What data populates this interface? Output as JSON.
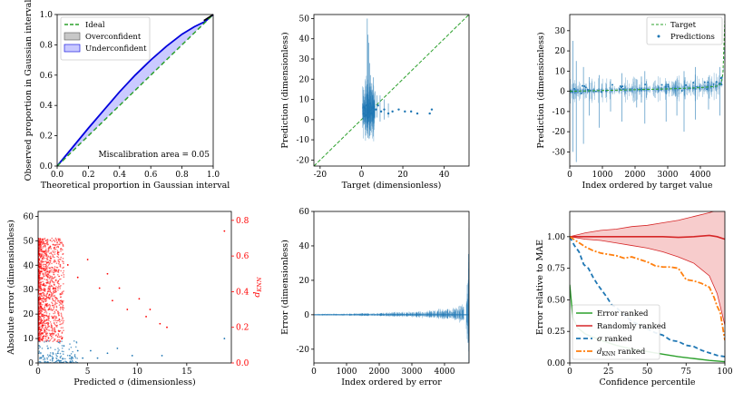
{
  "figure": {
    "panels_layout": "2x3 grid",
    "colors": {
      "blue": "#1f77b4",
      "dark_blue": "#0000dd",
      "orange": "#ff7f0e",
      "green": "#2ca02c",
      "red": "#d62728",
      "pure_red": "#ff0000",
      "gray": "#555555"
    }
  },
  "chart_data": [
    {
      "id": "calibration",
      "type": "line",
      "title": "",
      "xlabel": "Theoretical proportion in Gaussian interval",
      "ylabel": "Observed proportion in Gaussian interval",
      "xlim": [
        0,
        1
      ],
      "ylim": [
        0,
        1
      ],
      "xticks": [
        "0.0",
        "0.2",
        "0.4",
        "0.6",
        "0.8",
        "1.0"
      ],
      "yticks": [
        "0.0",
        "0.2",
        "0.4",
        "0.6",
        "0.8",
        "1.0"
      ],
      "legend": [
        "Ideal",
        "Overconfident",
        "Underconfident"
      ],
      "legend_position": "top-left",
      "annotation": "Miscalibration area = 0.05",
      "series": [
        {
          "name": "Ideal",
          "style": "dashed",
          "x": [
            0,
            1
          ],
          "y": [
            0,
            1
          ]
        },
        {
          "name": "Observed",
          "x": [
            0,
            0.1,
            0.2,
            0.3,
            0.4,
            0.5,
            0.6,
            0.7,
            0.8,
            0.88,
            0.95,
            1.0
          ],
          "y": [
            0,
            0.125,
            0.25,
            0.37,
            0.49,
            0.6,
            0.7,
            0.79,
            0.87,
            0.92,
            0.955,
            1.0
          ]
        }
      ]
    },
    {
      "id": "parity",
      "type": "scatter",
      "xlabel": "Target (dimensionless)",
      "ylabel": "Prediction (dimensionless)",
      "xlim": [
        -23,
        52
      ],
      "ylim": [
        -23,
        52
      ],
      "xticks": [
        -20,
        0,
        20,
        40
      ],
      "yticks": [
        -20,
        -10,
        0,
        10,
        20,
        30,
        40,
        50
      ],
      "ideal_line": [
        [
          -23,
          -23
        ],
        [
          52,
          52
        ]
      ],
      "points": [
        [
          1.0,
          3
        ],
        [
          1.5,
          6
        ],
        [
          2.0,
          2
        ],
        [
          2.5,
          7
        ],
        [
          3.0,
          4
        ],
        [
          3.2,
          1
        ],
        [
          3.8,
          5
        ],
        [
          4.2,
          8
        ],
        [
          4.8,
          3
        ],
        [
          5.2,
          6
        ],
        [
          6.0,
          4
        ],
        [
          7.0,
          5
        ],
        [
          8.0,
          7
        ],
        [
          9.5,
          4
        ],
        [
          11.0,
          5
        ],
        [
          13.0,
          3
        ],
        [
          15.0,
          4
        ],
        [
          18.0,
          5
        ],
        [
          21.0,
          4
        ],
        [
          24.0,
          4
        ],
        [
          27.0,
          3
        ],
        [
          33.0,
          3
        ],
        [
          34.0,
          5
        ]
      ],
      "error_bars": [
        [
          2.8,
          -2,
          50
        ],
        [
          3.1,
          -4,
          42
        ],
        [
          3.5,
          -1,
          38
        ],
        [
          4.0,
          -8,
          28
        ],
        [
          4.3,
          -2,
          22
        ],
        [
          5.0,
          0,
          18
        ],
        [
          6.5,
          1,
          14
        ],
        [
          7.5,
          1,
          12
        ],
        [
          9.0,
          -1,
          12
        ],
        [
          11.0,
          0,
          10
        ],
        [
          13.0,
          1,
          8
        ]
      ]
    },
    {
      "id": "ordered_target",
      "type": "line",
      "xlabel": "Index ordered by target value",
      "ylabel": "Prediction (dimensionless)",
      "xlim": [
        0,
        4750
      ],
      "ylim": [
        -37,
        38
      ],
      "xticks": [
        0,
        1000,
        2000,
        3000,
        4000
      ],
      "yticks": [
        -30,
        -20,
        -10,
        0,
        10,
        20,
        30
      ],
      "legend": [
        "Target",
        "Predictions"
      ],
      "legend_position": "top-right",
      "target_curve": {
        "x": [
          0,
          1000,
          2000,
          3000,
          4000,
          4500,
          4650,
          4720,
          4750
        ],
        "y": [
          0,
          0.4,
          0.8,
          1.2,
          1.8,
          2.5,
          4,
          12,
          35
        ]
      },
      "spikes": [
        [
          100,
          -30,
          25
        ],
        [
          200,
          -35,
          15
        ],
        [
          420,
          -26,
          12
        ],
        [
          600,
          -12,
          7
        ],
        [
          900,
          -18,
          8
        ],
        [
          1250,
          -10,
          6
        ],
        [
          1600,
          -15,
          9
        ],
        [
          2050,
          -8,
          6
        ],
        [
          2300,
          -16,
          10
        ],
        [
          2950,
          -15,
          5
        ],
        [
          3280,
          -12,
          6
        ],
        [
          3500,
          -20,
          10
        ],
        [
          3850,
          -14,
          12
        ],
        [
          4250,
          -9,
          7
        ],
        [
          4600,
          -12,
          12
        ]
      ]
    },
    {
      "id": "error_vs_sigma",
      "type": "scatter",
      "xlabel": "Predicted σ (dimensionless)",
      "ylabel": "Absolute error (dimensionless)",
      "ylabel_right": "dKNN",
      "xlim": [
        0,
        19.5
      ],
      "ylim": [
        0,
        62
      ],
      "ylim_right": [
        0,
        0.85
      ],
      "xticks": [
        0,
        5,
        10,
        15
      ],
      "yticks": [
        0,
        10,
        20,
        30,
        40,
        50,
        60
      ],
      "yticks_right": [
        "0.0",
        "0.2",
        "0.4",
        "0.6",
        "0.8"
      ],
      "dknn_points": [
        [
          2.0,
          0.62
        ],
        [
          3.0,
          0.55
        ],
        [
          4.0,
          0.48
        ],
        [
          5.0,
          0.58
        ],
        [
          6.2,
          0.42
        ],
        [
          7.0,
          0.5
        ],
        [
          7.5,
          0.35
        ],
        [
          8.2,
          0.42
        ],
        [
          9.0,
          0.3
        ],
        [
          10.2,
          0.36
        ],
        [
          10.9,
          0.26
        ],
        [
          11.3,
          0.3
        ],
        [
          12.3,
          0.22
        ],
        [
          13.0,
          0.2
        ],
        [
          18.8,
          0.74
        ]
      ],
      "error_points": [
        [
          0.5,
          3
        ],
        [
          1.0,
          6
        ],
        [
          1.5,
          2
        ],
        [
          2.0,
          4
        ],
        [
          2.6,
          7
        ],
        [
          3.2,
          3
        ],
        [
          4.0,
          5
        ],
        [
          4.5,
          2
        ],
        [
          5.3,
          5
        ],
        [
          6.0,
          2
        ],
        [
          7.0,
          4
        ],
        [
          8.0,
          6
        ],
        [
          9.5,
          3
        ],
        [
          12.5,
          3
        ],
        [
          18.8,
          10
        ]
      ]
    },
    {
      "id": "ordered_error",
      "type": "line",
      "xlabel": "Index ordered by error",
      "ylabel": "Error (dimensionless)",
      "xlim": [
        0,
        4750
      ],
      "ylim": [
        -28,
        60
      ],
      "xticks": [
        0,
        1000,
        2000,
        3000,
        4000
      ],
      "yticks": [
        -20,
        0,
        20,
        40,
        60
      ],
      "envelope": {
        "x": [
          0,
          1000,
          2000,
          3000,
          3500,
          4000,
          4300,
          4500,
          4650,
          4720,
          4750
        ],
        "amp": [
          0.4,
          0.6,
          1.0,
          1.5,
          2.0,
          2.8,
          3.5,
          5,
          10,
          25,
          50
        ]
      }
    },
    {
      "id": "ranking",
      "type": "line",
      "xlabel": "Confidence percentile",
      "ylabel": "Error relative to MAE",
      "xlim": [
        0,
        100
      ],
      "ylim": [
        0,
        1.2
      ],
      "xticks": [
        0,
        25,
        50,
        75,
        100
      ],
      "yticks": [
        "0.00",
        "0.25",
        "0.50",
        "0.75",
        "1.00"
      ],
      "legend": [
        "Error ranked",
        "Randomly ranked",
        "σ ranked",
        "dKNN ranked"
      ],
      "legend_position": "bottom-left",
      "series": [
        {
          "name": "Error ranked",
          "x": [
            0,
            2,
            5,
            10,
            20,
            30,
            40,
            50,
            60,
            70,
            80,
            90,
            100
          ],
          "y": [
            0.62,
            0.36,
            0.28,
            0.23,
            0.18,
            0.14,
            0.11,
            0.09,
            0.07,
            0.05,
            0.035,
            0.02,
            0.01
          ]
        },
        {
          "name": "Randomly ranked",
          "x": [
            0,
            10,
            20,
            30,
            40,
            50,
            60,
            70,
            80,
            90,
            95,
            100
          ],
          "y": [
            1.0,
            1.0,
            1.0,
            1.0,
            1.0,
            1.0,
            1.0,
            0.995,
            1.0,
            1.01,
            1.0,
            0.98
          ]
        },
        {
          "name": "Random band upper",
          "x": [
            0,
            10,
            20,
            30,
            40,
            50,
            60,
            70,
            80,
            90,
            95,
            100
          ],
          "y": [
            1.0,
            1.03,
            1.05,
            1.06,
            1.08,
            1.09,
            1.11,
            1.13,
            1.16,
            1.19,
            1.21,
            1.23
          ]
        },
        {
          "name": "Random band lower",
          "x": [
            0,
            10,
            20,
            30,
            40,
            50,
            60,
            70,
            80,
            90,
            95,
            100
          ],
          "y": [
            1.0,
            0.98,
            0.97,
            0.95,
            0.93,
            0.91,
            0.88,
            0.84,
            0.79,
            0.69,
            0.55,
            0.3
          ]
        },
        {
          "name": "σ ranked",
          "x": [
            0,
            3,
            6,
            9,
            12,
            15,
            18,
            21,
            24,
            27,
            30,
            35,
            40,
            45,
            50,
            55,
            60,
            65,
            70,
            75,
            80,
            85,
            90,
            95,
            100
          ],
          "y": [
            1.0,
            0.93,
            0.88,
            0.78,
            0.75,
            0.68,
            0.62,
            0.57,
            0.52,
            0.46,
            0.44,
            0.38,
            0.33,
            0.3,
            0.27,
            0.24,
            0.22,
            0.18,
            0.17,
            0.14,
            0.13,
            0.1,
            0.08,
            0.06,
            0.05
          ]
        },
        {
          "name": "dKNN ranked",
          "x": [
            0,
            5,
            10,
            15,
            20,
            25,
            30,
            35,
            40,
            45,
            50,
            55,
            60,
            65,
            70,
            75,
            80,
            85,
            90,
            93,
            95,
            97,
            100
          ],
          "y": [
            1.0,
            0.96,
            0.92,
            0.89,
            0.87,
            0.86,
            0.85,
            0.83,
            0.84,
            0.82,
            0.8,
            0.77,
            0.76,
            0.76,
            0.75,
            0.66,
            0.65,
            0.63,
            0.6,
            0.52,
            0.45,
            0.4,
            0.18
          ]
        }
      ]
    }
  ]
}
